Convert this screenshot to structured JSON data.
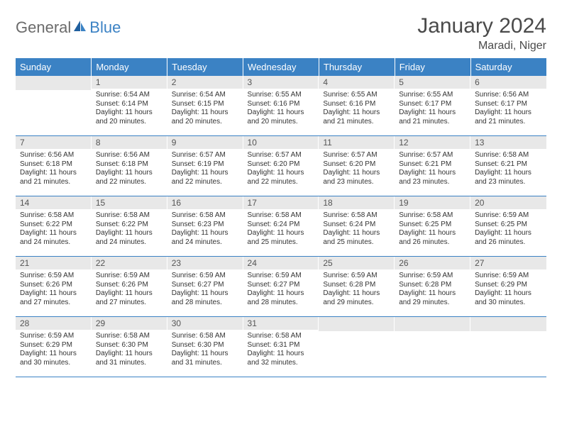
{
  "logo": {
    "general": "General",
    "blue": "Blue"
  },
  "title": "January 2024",
  "location": "Maradi, Niger",
  "colors": {
    "header_bg": "#3b82c4",
    "header_text": "#ffffff",
    "daynum_bg": "#e8e8e8",
    "rule": "#3b82c4",
    "body_text": "#333333"
  },
  "weekdays": [
    "Sunday",
    "Monday",
    "Tuesday",
    "Wednesday",
    "Thursday",
    "Friday",
    "Saturday"
  ],
  "weeks": [
    [
      null,
      {
        "n": "1",
        "sr": "6:54 AM",
        "ss": "6:14 PM",
        "dm": "20"
      },
      {
        "n": "2",
        "sr": "6:54 AM",
        "ss": "6:15 PM",
        "dm": "20"
      },
      {
        "n": "3",
        "sr": "6:55 AM",
        "ss": "6:16 PM",
        "dm": "20"
      },
      {
        "n": "4",
        "sr": "6:55 AM",
        "ss": "6:16 PM",
        "dm": "21"
      },
      {
        "n": "5",
        "sr": "6:55 AM",
        "ss": "6:17 PM",
        "dm": "21"
      },
      {
        "n": "6",
        "sr": "6:56 AM",
        "ss": "6:17 PM",
        "dm": "21"
      }
    ],
    [
      {
        "n": "7",
        "sr": "6:56 AM",
        "ss": "6:18 PM",
        "dm": "21"
      },
      {
        "n": "8",
        "sr": "6:56 AM",
        "ss": "6:18 PM",
        "dm": "22"
      },
      {
        "n": "9",
        "sr": "6:57 AM",
        "ss": "6:19 PM",
        "dm": "22"
      },
      {
        "n": "10",
        "sr": "6:57 AM",
        "ss": "6:20 PM",
        "dm": "22"
      },
      {
        "n": "11",
        "sr": "6:57 AM",
        "ss": "6:20 PM",
        "dm": "23"
      },
      {
        "n": "12",
        "sr": "6:57 AM",
        "ss": "6:21 PM",
        "dm": "23"
      },
      {
        "n": "13",
        "sr": "6:58 AM",
        "ss": "6:21 PM",
        "dm": "23"
      }
    ],
    [
      {
        "n": "14",
        "sr": "6:58 AM",
        "ss": "6:22 PM",
        "dm": "24"
      },
      {
        "n": "15",
        "sr": "6:58 AM",
        "ss": "6:22 PM",
        "dm": "24"
      },
      {
        "n": "16",
        "sr": "6:58 AM",
        "ss": "6:23 PM",
        "dm": "24"
      },
      {
        "n": "17",
        "sr": "6:58 AM",
        "ss": "6:24 PM",
        "dm": "25"
      },
      {
        "n": "18",
        "sr": "6:58 AM",
        "ss": "6:24 PM",
        "dm": "25"
      },
      {
        "n": "19",
        "sr": "6:58 AM",
        "ss": "6:25 PM",
        "dm": "26"
      },
      {
        "n": "20",
        "sr": "6:59 AM",
        "ss": "6:25 PM",
        "dm": "26"
      }
    ],
    [
      {
        "n": "21",
        "sr": "6:59 AM",
        "ss": "6:26 PM",
        "dm": "27"
      },
      {
        "n": "22",
        "sr": "6:59 AM",
        "ss": "6:26 PM",
        "dm": "27"
      },
      {
        "n": "23",
        "sr": "6:59 AM",
        "ss": "6:27 PM",
        "dm": "28"
      },
      {
        "n": "24",
        "sr": "6:59 AM",
        "ss": "6:27 PM",
        "dm": "28"
      },
      {
        "n": "25",
        "sr": "6:59 AM",
        "ss": "6:28 PM",
        "dm": "29"
      },
      {
        "n": "26",
        "sr": "6:59 AM",
        "ss": "6:28 PM",
        "dm": "29"
      },
      {
        "n": "27",
        "sr": "6:59 AM",
        "ss": "6:29 PM",
        "dm": "30"
      }
    ],
    [
      {
        "n": "28",
        "sr": "6:59 AM",
        "ss": "6:29 PM",
        "dm": "30"
      },
      {
        "n": "29",
        "sr": "6:58 AM",
        "ss": "6:30 PM",
        "dm": "31"
      },
      {
        "n": "30",
        "sr": "6:58 AM",
        "ss": "6:30 PM",
        "dm": "31"
      },
      {
        "n": "31",
        "sr": "6:58 AM",
        "ss": "6:31 PM",
        "dm": "32"
      },
      null,
      null,
      null
    ]
  ],
  "labels": {
    "sunrise": "Sunrise:",
    "sunset": "Sunset:",
    "daylight_prefix": "Daylight: 11 hours and ",
    "daylight_suffix": " minutes."
  }
}
